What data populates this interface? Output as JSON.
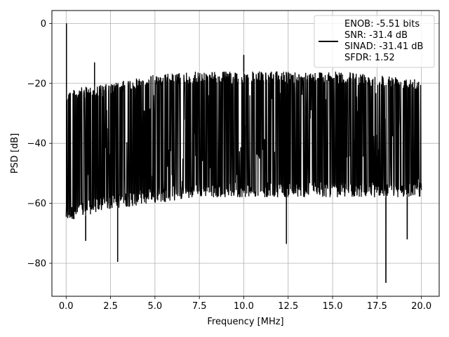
{
  "chart_data": {
    "type": "line",
    "title": "",
    "xlabel": "Frequency [MHz]",
    "ylabel": "PSD [dB]",
    "xlim": [
      -0.8,
      21.0
    ],
    "ylim": [
      -91,
      4.3
    ],
    "grid": true,
    "legend_position": "top-right",
    "x_ticks": [
      0.0,
      2.5,
      5.0,
      7.5,
      10.0,
      12.5,
      15.0,
      17.5,
      20.0
    ],
    "x_tick_labels": [
      "0.0",
      "2.5",
      "5.0",
      "7.5",
      "10.0",
      "12.5",
      "15.0",
      "17.5",
      "20.0"
    ],
    "y_ticks": [
      0,
      -20,
      -40,
      -60,
      -80
    ],
    "y_tick_labels": [
      "0",
      "−20",
      "−40",
      "−60",
      "−80"
    ],
    "series": [
      {
        "name": "ENOB: -5.51 bits",
        "color": "#000000",
        "x_range": [
          0.0,
          20.0
        ],
        "noise_floor_top_db": [
          [
            0.0,
            -22
          ],
          [
            2.5,
            -20
          ],
          [
            5.0,
            -17
          ],
          [
            7.5,
            -16
          ],
          [
            10.0,
            -16
          ],
          [
            12.5,
            -16
          ],
          [
            15.0,
            -16
          ],
          [
            17.5,
            -17
          ],
          [
            20.0,
            -18
          ]
        ],
        "noise_floor_bottom_db": [
          [
            0.0,
            -66
          ],
          [
            2.5,
            -62
          ],
          [
            5.0,
            -60
          ],
          [
            7.5,
            -58
          ],
          [
            10.0,
            -58
          ],
          [
            12.5,
            -58
          ],
          [
            15.0,
            -58
          ],
          [
            17.5,
            -58
          ],
          [
            20.0,
            -58
          ]
        ],
        "peaks": [
          {
            "x": 0.02,
            "y": 0.0
          },
          {
            "x": 1.6,
            "y": -13.0
          },
          {
            "x": 10.0,
            "y": -10.5
          }
        ],
        "dips": [
          {
            "x": 2.9,
            "y": -79.5
          },
          {
            "x": 1.1,
            "y": -72.5
          },
          {
            "x": 18.0,
            "y": -86.5
          },
          {
            "x": 12.4,
            "y": -73.5
          },
          {
            "x": 19.2,
            "y": -72.0
          }
        ]
      }
    ],
    "legend_entries": [
      "ENOB: -5.51 bits",
      "SNR: -31.4 dB",
      "SINAD: -31.41 dB",
      "SFDR: 1.52"
    ]
  }
}
